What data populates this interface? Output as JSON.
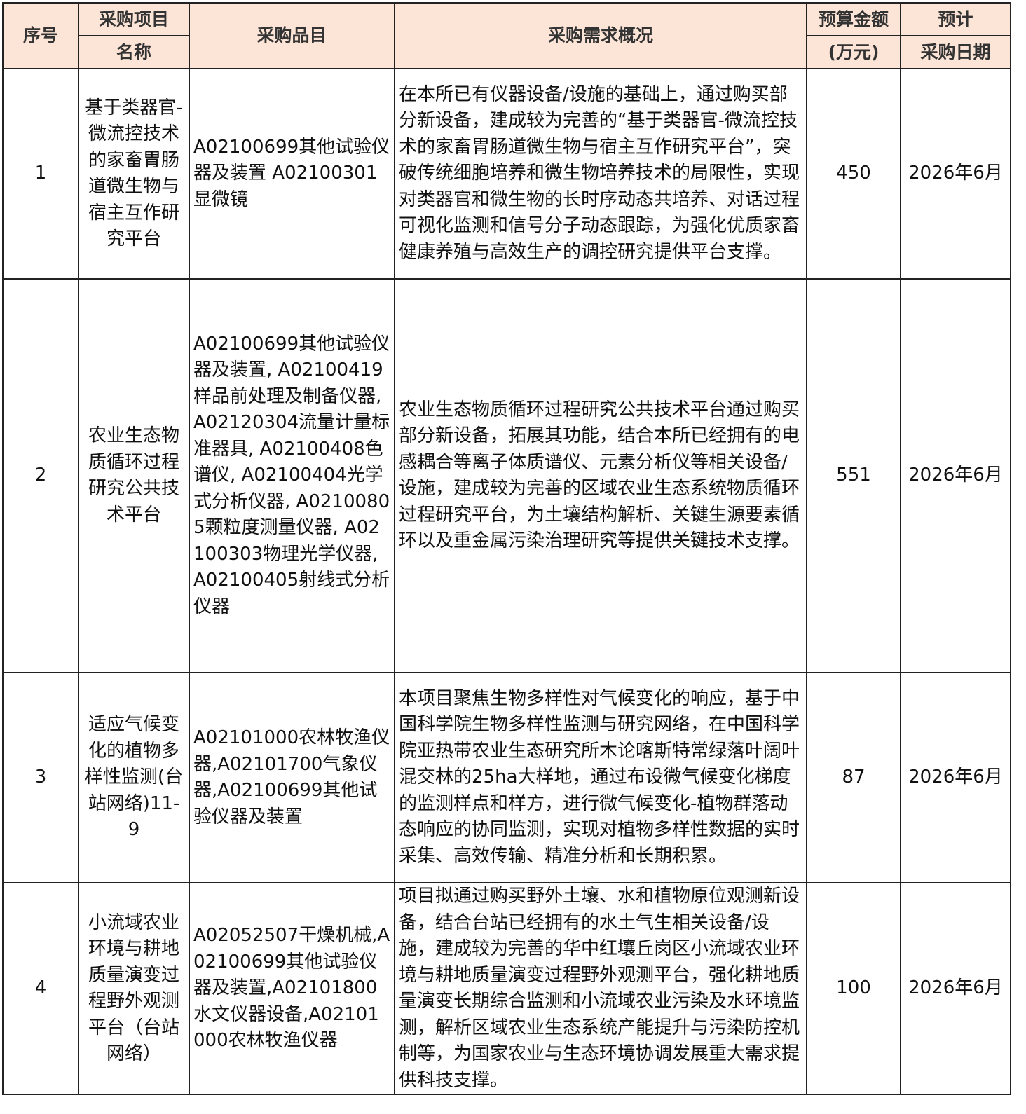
{
  "header": {
    "index": "序号",
    "name_top": "采购项目",
    "name_bottom": "名称",
    "items": "采购品目",
    "overview": "采购需求概况",
    "budget_top": "预算金额",
    "budget_bottom": "(万元)",
    "date_top": "预计",
    "date_bottom": "采购日期"
  },
  "rows": [
    {
      "index": "1",
      "name": "基于类器官-微流控技术的家畜胃肠道微生物与宿主互作研究平台",
      "items": "A02100699其他试验仪器及装置 A02100301显微镜",
      "overview": "在本所已有仪器设备/设施的基础上，通过购买部分新设备，建成较为完善的“基于类器官-微流控技术的家畜胃肠道微生物与宿主互作研究平台”，突破传统细胞培养和微生物培养技术的局限性，实现对类器官和微生物的长时序动态共培养、对话过程可视化监测和信号分子动态跟踪，为强化优质家畜健康养殖与高效生产的调控研究提供平台支撑。",
      "budget": "450",
      "date": "2026年6月"
    },
    {
      "index": "2",
      "name": "农业生态物质循环过程研究公共技术平台",
      "items": "A02100699其他试验仪器及装置, A02100419样品前处理及制备仪器, A02120304流量计量标准器具, A02100408色谱仪, A02100404光学式分析仪器, A02100805颗粒度测量仪器, A02100303物理光学仪器, A02100405射线式分析仪器",
      "overview": "农业生态物质循环过程研究公共技术平台通过购买部分新设备，拓展其功能，结合本所已经拥有的电感耦合等离子体质谱仪、元素分析仪等相关设备/设施，建成较为完善的区域农业生态系统物质循环过程研究平台，为土壤结构解析、关键生源要素循环以及重金属污染治理研究等提供关键技术支撑。",
      "budget": "551",
      "date": "2026年6月"
    },
    {
      "index": "3",
      "name": "适应气候变化的植物多样性监测(台站网络)11-9",
      "items": "A02101000农林牧渔仪器,A02101700气象仪器,A02100699其他试验仪器及装置",
      "overview": "本项目聚焦生物多样性对气候变化的响应，基于中国科学院生物多样性监测与研究网络，在中国科学院亚热带农业生态研究所木论喀斯特常绿落叶阔叶混交林的25ha大样地，通过布设微气候变化梯度的监测样点和样方，进行微气候变化-植物群落动态响应的协同监测，实现对植物多样性数据的实时采集、高效传输、精准分析和长期积累。",
      "budget": "87",
      "date": "2026年6月"
    },
    {
      "index": "4",
      "name": "小流域农业环境与耕地质量演变过程野外观测平台（台站网络）",
      "items": "A02052507干燥机械,A02100699其他试验仪器及装置,A02101800水文仪器设备,A02101000农林牧渔仪器",
      "overview": "项目拟通过购买野外土壤、水和植物原位观测新设备，结合台站已经拥有的水土气生相关设备/设施，建成较为完善的华中红壤丘岗区小流域农业环境与耕地质量演变过程野外观测平台，强化耕地质量演变长期综合监测和小流域农业污染及水环境监测，解析区域农业生态系统产能提升与污染防控机制等，为国家农业与生态环境协调发展重大需求提供科技支撑。",
      "budget": "100",
      "date": "2026年6月"
    }
  ],
  "colors": {
    "header_bg": "#fce4d6",
    "border": "#222222"
  }
}
